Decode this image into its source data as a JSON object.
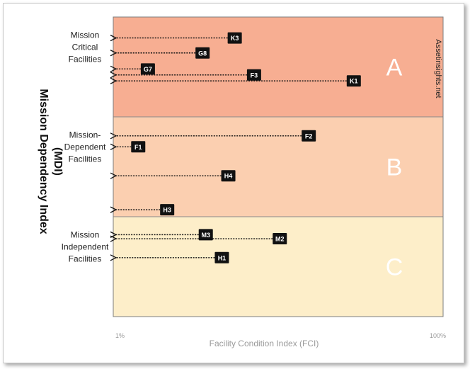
{
  "chart_data": {
    "type": "scatter",
    "xlabel": "Facility Condition Index (FCI)",
    "ylabel": "Mission Dependency Index (MDI)",
    "ylabel_lines": [
      "Mission Dependency Index",
      "(MDI)"
    ],
    "x_ticks": [
      "1%",
      "100%"
    ],
    "xlim": [
      1,
      100
    ],
    "watermark": "Assetinsights.net",
    "zones": [
      {
        "letter": "A",
        "label_lines": [
          "Mission",
          "Critical",
          "Facilities"
        ],
        "color": "#f7ae92"
      },
      {
        "letter": "B",
        "label_lines": [
          "Mission-",
          "Dependent",
          "Facilities"
        ],
        "color": "#fbcfb0"
      },
      {
        "letter": "C",
        "label_lines": [
          "Mission",
          "Independent",
          "Facilities"
        ],
        "color": "#fdeec9"
      }
    ],
    "points": [
      {
        "label": "K3",
        "fci": 37,
        "zone": "A",
        "rank": 0.21
      },
      {
        "label": "G8",
        "fci": 27,
        "zone": "A",
        "rank": 0.36
      },
      {
        "label": "G7",
        "fci": 10,
        "zone": "A",
        "rank": 0.52
      },
      {
        "label": "F3",
        "fci": 43,
        "zone": "A",
        "rank": 0.58
      },
      {
        "label": "K1",
        "fci": 74,
        "zone": "A",
        "rank": 0.64
      },
      {
        "label": "F2",
        "fci": 60,
        "zone": "B",
        "rank": 0.19
      },
      {
        "label": "F1",
        "fci": 7,
        "zone": "B",
        "rank": 0.3
      },
      {
        "label": "H4",
        "fci": 35,
        "zone": "B",
        "rank": 0.59
      },
      {
        "label": "H3",
        "fci": 16,
        "zone": "B",
        "rank": 0.93
      },
      {
        "label": "M3",
        "fci": 28,
        "zone": "C",
        "rank": 0.18
      },
      {
        "label": "M2",
        "fci": 51,
        "zone": "C",
        "rank": 0.22
      },
      {
        "label": "H1",
        "fci": 33,
        "zone": "C",
        "rank": 0.41
      }
    ]
  }
}
